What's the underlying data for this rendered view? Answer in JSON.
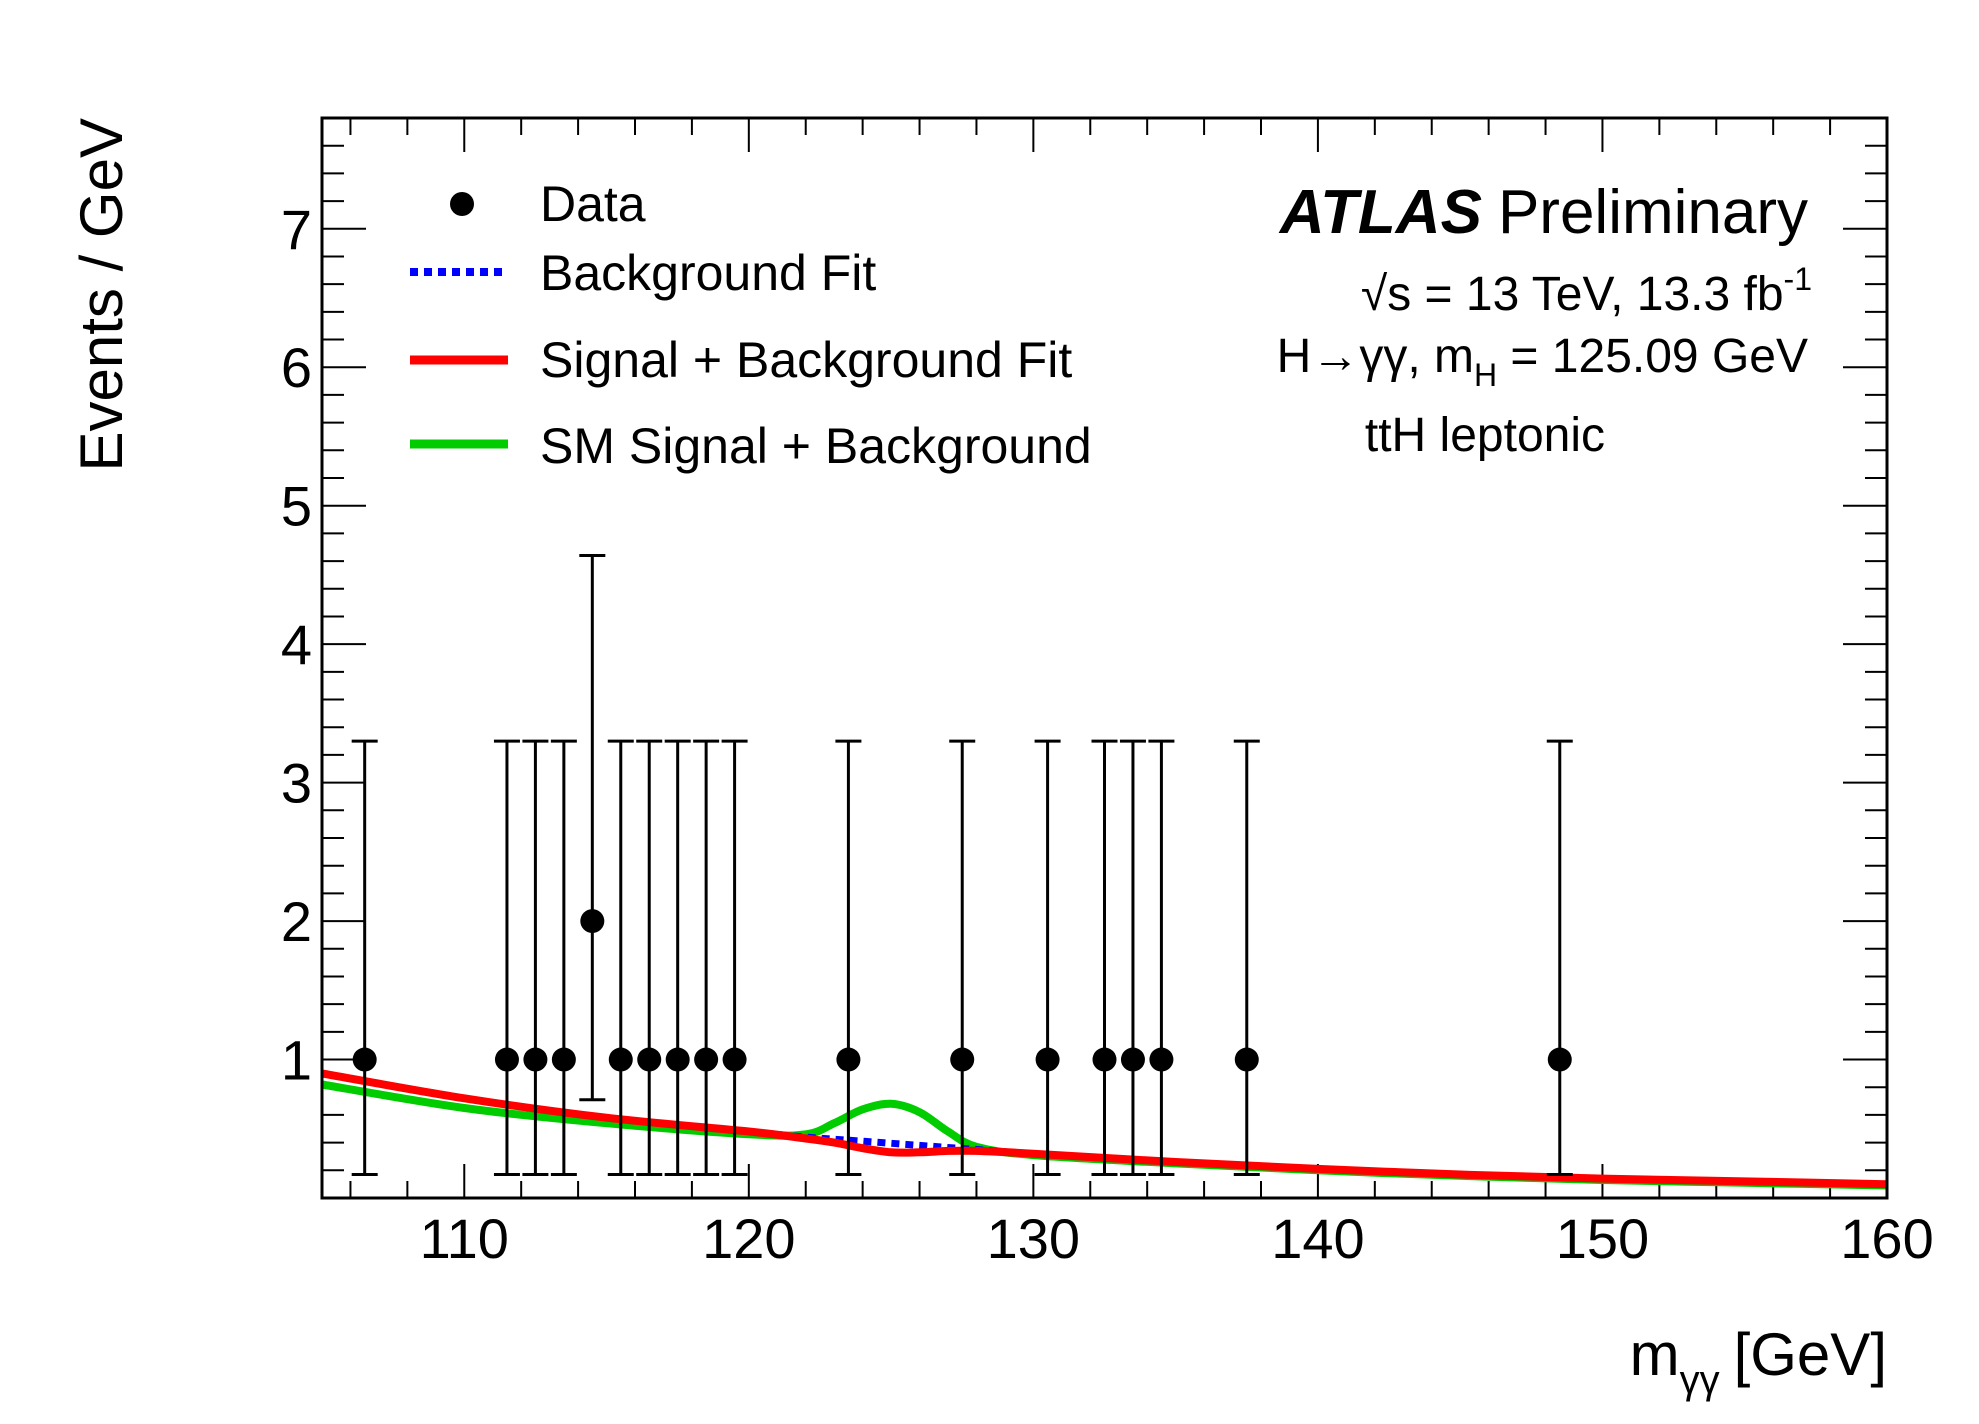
{
  "chart_data": {
    "type": "scatter",
    "title": "",
    "xlabel": "m",
    "xlabel_sub": "γγ",
    "xlabel_unit": "[GeV]",
    "ylabel": "Events / GeV",
    "xlim": [
      105,
      160
    ],
    "ylim": [
      0,
      7.8
    ],
    "x_ticks": [
      110,
      120,
      130,
      140,
      150,
      160
    ],
    "x_tick_labels": [
      "110",
      "120",
      "130",
      "140",
      "150",
      "160"
    ],
    "y_ticks": [
      1,
      2,
      3,
      4,
      5,
      6,
      7
    ],
    "y_tick_labels": [
      "1",
      "2",
      "3",
      "4",
      "5",
      "6",
      "7"
    ],
    "data": {
      "name": "Data",
      "x": [
        106.5,
        111.5,
        112.5,
        113.5,
        114.5,
        115.5,
        116.5,
        117.5,
        118.5,
        119.5,
        123.5,
        127.5,
        130.5,
        132.5,
        133.5,
        134.5,
        137.5,
        148.5
      ],
      "y": [
        1,
        1,
        1,
        1,
        2,
        1,
        1,
        1,
        1,
        1,
        1,
        1,
        1,
        1,
        1,
        1,
        1,
        1
      ],
      "err_low": [
        0.83,
        0.83,
        0.83,
        0.83,
        1.29,
        0.83,
        0.83,
        0.83,
        0.83,
        0.83,
        0.83,
        0.83,
        0.83,
        0.83,
        0.83,
        0.83,
        0.83,
        0.83
      ],
      "err_high": [
        2.3,
        2.3,
        2.3,
        2.3,
        2.64,
        2.3,
        2.3,
        2.3,
        2.3,
        2.3,
        2.3,
        2.3,
        2.3,
        2.3,
        2.3,
        2.3,
        2.3,
        2.3
      ]
    },
    "series": [
      {
        "name": "Background Fit",
        "style": "dotted",
        "color": "#0000ff",
        "x": [
          105,
          110,
          115,
          120,
          122,
          124,
          126,
          128,
          130,
          135,
          140,
          145,
          150,
          155,
          160
        ],
        "values": [
          0.9,
          0.72,
          0.58,
          0.48,
          0.44,
          0.41,
          0.38,
          0.35,
          0.32,
          0.26,
          0.21,
          0.17,
          0.14,
          0.12,
          0.1
        ]
      },
      {
        "name": "Signal + Background Fit",
        "style": "solid",
        "color": "#ff0000",
        "x": [
          105,
          110,
          115,
          120,
          122,
          123,
          124,
          125,
          126,
          127,
          128,
          130,
          135,
          140,
          145,
          150,
          155,
          160
        ],
        "values": [
          0.9,
          0.72,
          0.58,
          0.48,
          0.43,
          0.4,
          0.36,
          0.33,
          0.33,
          0.34,
          0.34,
          0.32,
          0.26,
          0.21,
          0.17,
          0.14,
          0.12,
          0.1
        ]
      },
      {
        "name": "SM Signal + Background",
        "style": "solid",
        "color": "#00cc00",
        "x": [
          105,
          110,
          115,
          120,
          122,
          123,
          124,
          125,
          126,
          127,
          128,
          130,
          135,
          140,
          145,
          150,
          155,
          160
        ],
        "values": [
          0.82,
          0.65,
          0.54,
          0.46,
          0.46,
          0.54,
          0.64,
          0.68,
          0.62,
          0.48,
          0.37,
          0.31,
          0.25,
          0.2,
          0.16,
          0.13,
          0.11,
          0.09
        ]
      }
    ],
    "legend": {
      "position": "top-left",
      "entries": [
        {
          "label": "Data",
          "marker": "dot",
          "color": "#000000"
        },
        {
          "label": "Background Fit",
          "marker": "dotted-line",
          "color": "#0000ff"
        },
        {
          "label": "Signal + Background Fit",
          "marker": "line",
          "color": "#ff0000"
        },
        {
          "label": "SM Signal + Background",
          "marker": "line",
          "color": "#00cc00"
        }
      ]
    },
    "annotations": {
      "atlas": "ATLAS",
      "preliminary": "Preliminary",
      "sqrt_symbol": "√",
      "energy_prefix": "s = 13 TeV, 13.3 fb",
      "energy_sup": "-1",
      "channel_prefix": "H→γγ, m",
      "channel_sub": "H",
      "channel_suffix": " = 125.09 GeV",
      "category": "ttH leptonic"
    }
  }
}
